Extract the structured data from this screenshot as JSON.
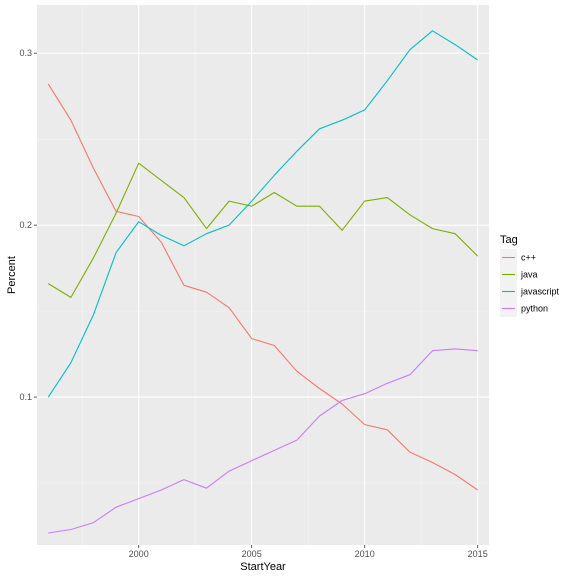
{
  "chart_data": {
    "type": "line",
    "xlabel": "StartYear",
    "ylabel": "Percent",
    "xlim": [
      1995.5,
      2015.5
    ],
    "ylim": [
      0.014,
      0.328
    ],
    "xticks": [
      2000,
      2005,
      2010,
      2015
    ],
    "xtick_labels": [
      "2000",
      "2005",
      "2010",
      "2015"
    ],
    "yticks": [
      0.1,
      0.2,
      0.3
    ],
    "ytick_labels": [
      "0.1",
      "0.2",
      "0.3"
    ],
    "grid": true,
    "legend": {
      "title": "Tag",
      "position": "right"
    },
    "x": [
      1996,
      1997,
      1998,
      1999,
      2000,
      2001,
      2002,
      2003,
      2004,
      2005,
      2006,
      2007,
      2008,
      2009,
      2010,
      2011,
      2012,
      2013,
      2014,
      2015
    ],
    "series": [
      {
        "name": "c++",
        "color": "#F8766D",
        "values": [
          0.282,
          0.261,
          0.233,
          0.208,
          0.205,
          0.19,
          0.165,
          0.161,
          0.152,
          0.134,
          0.13,
          0.115,
          0.105,
          0.096,
          0.084,
          0.081,
          0.068,
          0.062,
          0.055,
          0.046
        ]
      },
      {
        "name": "java",
        "color": "#7CAE00",
        "values": [
          0.166,
          0.158,
          0.181,
          0.207,
          0.236,
          0.226,
          0.216,
          0.198,
          0.214,
          0.211,
          0.219,
          0.211,
          0.211,
          0.197,
          0.214,
          0.216,
          0.206,
          0.198,
          0.195,
          0.182
        ]
      },
      {
        "name": "javascript",
        "color": "#00BFC4",
        "values": [
          0.1,
          0.12,
          0.148,
          0.184,
          0.202,
          0.194,
          0.188,
          0.195,
          0.2,
          0.214,
          0.229,
          0.243,
          0.256,
          0.261,
          0.267,
          0.284,
          0.302,
          0.313,
          0.305,
          0.296
        ]
      },
      {
        "name": "python",
        "color": "#C77CFF",
        "values": [
          0.021,
          0.023,
          0.027,
          0.036,
          0.041,
          0.046,
          0.052,
          0.047,
          0.057,
          0.063,
          0.069,
          0.075,
          0.089,
          0.098,
          0.102,
          0.108,
          0.113,
          0.127,
          0.128,
          0.127
        ]
      }
    ]
  }
}
